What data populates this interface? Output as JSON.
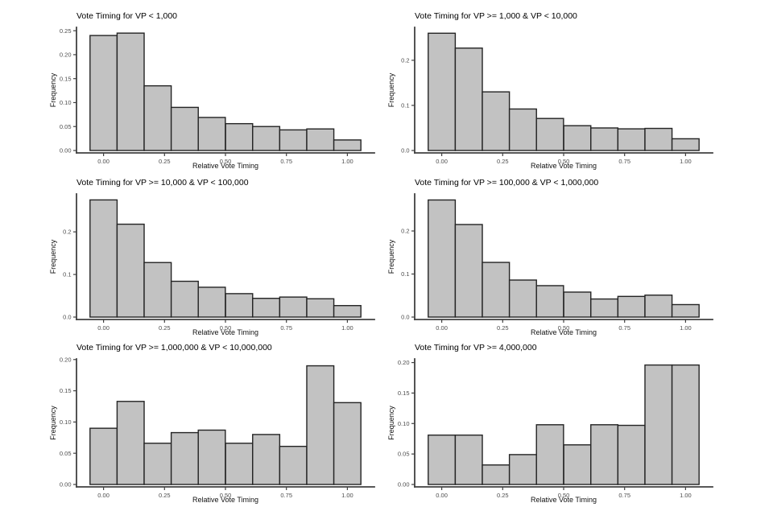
{
  "page": {
    "background": "#ffffff",
    "figure_type": "histogram-grid",
    "grid": {
      "columns": 2,
      "rows": 3
    }
  },
  "style": {
    "bar_fill": "#c2c2c2",
    "bar_stroke": "#242424",
    "axis_color": "#404040",
    "tick_text_color": "#4d4d4d",
    "title_color": "#000000",
    "background": "#ffffff"
  },
  "chart_data": [
    {
      "type": "bar",
      "subtype": "histogram",
      "title": "Vote Timing for VP < 1,000",
      "xlabel": "Relative Vote Timing",
      "ylabel": "Frequency",
      "binwidth": 0.111,
      "bin_centers": [
        0,
        0.111,
        0.222,
        0.333,
        0.444,
        0.556,
        0.667,
        0.778,
        0.889,
        1.0
      ],
      "values": [
        0.24,
        0.245,
        0.135,
        0.09,
        0.069,
        0.056,
        0.05,
        0.043,
        0.045,
        0.022
      ],
      "x_ticks": [
        0,
        0.25,
        0.5,
        0.75,
        1.0
      ],
      "x_tick_labels": [
        "0.00",
        "0.25",
        "0.50",
        "0.75",
        "1.00"
      ],
      "y_ticks": [
        0,
        0.05,
        0.1,
        0.15,
        0.2,
        0.25
      ],
      "y_tick_labels": [
        "0.00",
        "0.05",
        "0.10",
        "0.15",
        "0.20",
        "0.25"
      ],
      "ylim": [
        0,
        0.257
      ],
      "grid_lines": false,
      "legend": "none"
    },
    {
      "type": "bar",
      "subtype": "histogram",
      "title": "Vote Timing for VP >= 1,000 & VP < 10,000",
      "xlabel": "Relative Vote Timing",
      "ylabel": "Frequency",
      "binwidth": 0.111,
      "bin_centers": [
        0,
        0.111,
        0.222,
        0.333,
        0.444,
        0.556,
        0.667,
        0.778,
        0.889,
        1.0
      ],
      "values": [
        0.26,
        0.227,
        0.13,
        0.092,
        0.071,
        0.055,
        0.05,
        0.048,
        0.049,
        0.026
      ],
      "x_ticks": [
        0,
        0.25,
        0.5,
        0.75,
        1.0
      ],
      "x_tick_labels": [
        "0.00",
        "0.25",
        "0.50",
        "0.75",
        "1.00"
      ],
      "y_ticks": [
        0,
        0.1,
        0.2
      ],
      "y_tick_labels": [
        "0.0",
        "0.1",
        "0.2"
      ],
      "ylim": [
        0,
        0.273
      ],
      "grid_lines": false,
      "legend": "none"
    },
    {
      "type": "bar",
      "subtype": "histogram",
      "title": "Vote Timing for VP >= 10,000 & VP < 100,000",
      "xlabel": "Relative Vote Timing",
      "ylabel": "Frequency",
      "binwidth": 0.111,
      "bin_centers": [
        0,
        0.111,
        0.222,
        0.333,
        0.444,
        0.556,
        0.667,
        0.778,
        0.889,
        1.0
      ],
      "values": [
        0.275,
        0.218,
        0.128,
        0.084,
        0.07,
        0.055,
        0.044,
        0.047,
        0.043,
        0.027
      ],
      "x_ticks": [
        0,
        0.25,
        0.5,
        0.75,
        1.0
      ],
      "x_tick_labels": [
        "0.00",
        "0.25",
        "0.50",
        "0.75",
        "1.00"
      ],
      "y_ticks": [
        0,
        0.1,
        0.2
      ],
      "y_tick_labels": [
        "0.0",
        "0.1",
        "0.2"
      ],
      "ylim": [
        0,
        0.289
      ],
      "grid_lines": false,
      "legend": "none"
    },
    {
      "type": "bar",
      "subtype": "histogram",
      "title": "Vote Timing for VP >= 100,000 & VP < 1,000,000",
      "xlabel": "Relative Vote Timing",
      "ylabel": "Frequency",
      "binwidth": 0.111,
      "bin_centers": [
        0,
        0.111,
        0.222,
        0.333,
        0.444,
        0.556,
        0.667,
        0.778,
        0.889,
        1.0
      ],
      "values": [
        0.272,
        0.215,
        0.127,
        0.086,
        0.073,
        0.058,
        0.042,
        0.048,
        0.051,
        0.029
      ],
      "x_ticks": [
        0,
        0.25,
        0.5,
        0.75,
        1.0
      ],
      "x_tick_labels": [
        "0.00",
        "0.25",
        "0.50",
        "0.75",
        "1.00"
      ],
      "y_ticks": [
        0,
        0.1,
        0.2
      ],
      "y_tick_labels": [
        "0.0",
        "0.1",
        "0.2"
      ],
      "ylim": [
        0,
        0.286
      ],
      "grid_lines": false,
      "legend": "none"
    },
    {
      "type": "bar",
      "subtype": "histogram",
      "title": "Vote Timing for VP >= 1,000,000 & VP < 10,000,000",
      "xlabel": "Relative Vote Timing",
      "ylabel": "Frequency",
      "binwidth": 0.111,
      "bin_centers": [
        0,
        0.111,
        0.222,
        0.333,
        0.444,
        0.556,
        0.667,
        0.778,
        0.889,
        1.0
      ],
      "values": [
        0.09,
        0.133,
        0.066,
        0.083,
        0.087,
        0.066,
        0.08,
        0.061,
        0.19,
        0.131
      ],
      "x_ticks": [
        0,
        0.25,
        0.5,
        0.75,
        1.0
      ],
      "x_tick_labels": [
        "0.00",
        "0.25",
        "0.50",
        "0.75",
        "1.00"
      ],
      "y_ticks": [
        0,
        0.05,
        0.1,
        0.15,
        0.2
      ],
      "y_tick_labels": [
        "0.00",
        "0.05",
        "0.10",
        "0.15",
        "0.20"
      ],
      "ylim": [
        0,
        0.201
      ],
      "grid_lines": false,
      "legend": "none"
    },
    {
      "type": "bar",
      "subtype": "histogram",
      "title": "Vote Timing for VP >= 4,000,000",
      "xlabel": "Relative Vote Timing",
      "ylabel": "Frequency",
      "binwidth": 0.111,
      "bin_centers": [
        0,
        0.111,
        0.222,
        0.333,
        0.444,
        0.556,
        0.667,
        0.778,
        0.889,
        1.0
      ],
      "values": [
        0.081,
        0.081,
        0.032,
        0.049,
        0.098,
        0.065,
        0.098,
        0.097,
        0.196,
        0.196
      ],
      "x_ticks": [
        0,
        0.25,
        0.5,
        0.75,
        1.0
      ],
      "x_tick_labels": [
        "0.00",
        "0.25",
        "0.50",
        "0.75",
        "1.00"
      ],
      "y_ticks": [
        0,
        0.05,
        0.1,
        0.15,
        0.2
      ],
      "y_tick_labels": [
        "0.00",
        "0.05",
        "0.10",
        "0.15",
        "0.20"
      ],
      "ylim": [
        0,
        0.206
      ],
      "grid_lines": false,
      "legend": "none"
    }
  ]
}
